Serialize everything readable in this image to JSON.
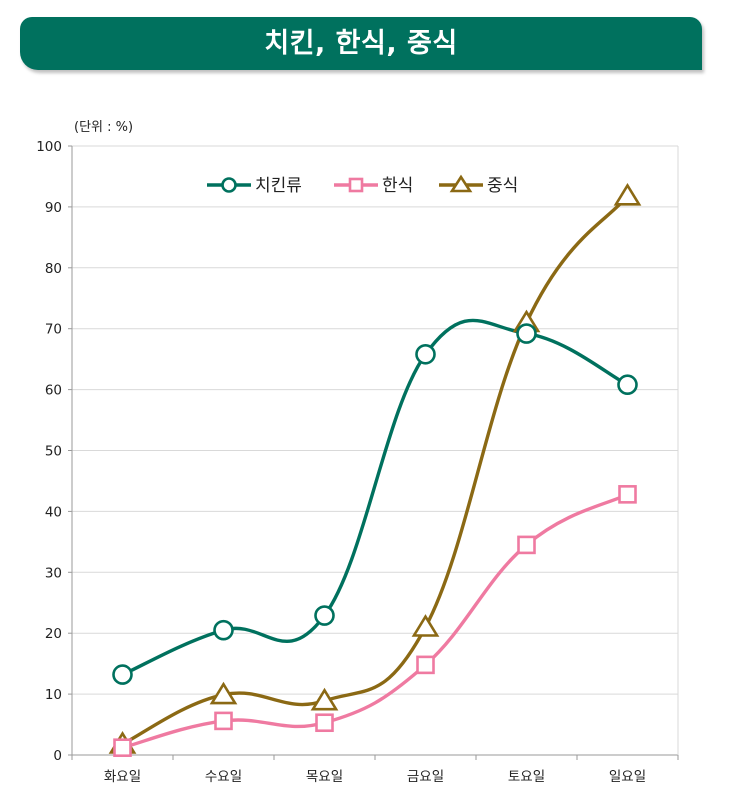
{
  "header": {
    "title": "치킨, 한식, 중식"
  },
  "colors": {
    "banner": "#00715e",
    "chicken": "#00715e",
    "korean": "#ef7aa1",
    "chinese": "#8b6914",
    "grid": "#d9d9d9"
  },
  "chart_data": {
    "type": "line",
    "title": "치킨, 한식, 중식",
    "unit_label": "(단위 : %)",
    "categories": [
      "화요일",
      "수요일",
      "목요일",
      "금요일",
      "토요일",
      "일요일"
    ],
    "ylim": [
      0,
      100
    ],
    "yticks": [
      0,
      10,
      20,
      30,
      40,
      50,
      60,
      70,
      80,
      90,
      100
    ],
    "grid": true,
    "legend_position": "top-center",
    "series": [
      {
        "name": "치킨류",
        "marker": "circle",
        "color": "#00715e",
        "values": [
          13.2,
          20.5,
          22.9,
          65.8,
          69.2,
          60.8
        ]
      },
      {
        "name": "한식",
        "marker": "square",
        "color": "#ef7aa1",
        "values": [
          1.2,
          5.6,
          5.3,
          14.8,
          34.5,
          42.8
        ]
      },
      {
        "name": "중식",
        "marker": "triangle",
        "color": "#8b6914",
        "values": [
          1.8,
          9.9,
          8.9,
          21.0,
          71.0,
          91.8
        ]
      }
    ]
  }
}
